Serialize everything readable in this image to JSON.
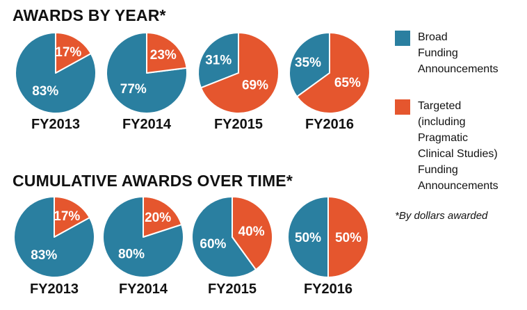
{
  "colors": {
    "broad": "#2a7fa0",
    "targeted": "#e5562e"
  },
  "legend": {
    "broad": [
      "Broad",
      "Funding",
      "Announcements"
    ],
    "targeted": [
      "Targeted",
      "(including",
      "Pragmatic",
      "Clinical Studies)",
      "Funding",
      "Announcements"
    ]
  },
  "note": "*By dollars awarded",
  "chart_data": [
    {
      "type": "pie",
      "title": "AWARDS BY YEAR*",
      "categories": [
        "FY2013",
        "FY2014",
        "FY2015",
        "FY2016"
      ],
      "series": [
        {
          "name": "Broad Funding Announcements",
          "values": [
            83,
            77,
            31,
            35
          ]
        },
        {
          "name": "Targeted (including Pragmatic Clinical Studies) Funding Announcements",
          "values": [
            17,
            23,
            69,
            65
          ]
        }
      ],
      "labels": {
        "broad": [
          "83%",
          "77%",
          "31%",
          "35%"
        ],
        "targeted": [
          "17%",
          "23%",
          "69%",
          "65%"
        ]
      }
    },
    {
      "type": "pie",
      "title": "CUMULATIVE AWARDS OVER TIME*",
      "categories": [
        "FY2013",
        "FY2014",
        "FY2015",
        "FY2016"
      ],
      "series": [
        {
          "name": "Broad Funding Announcements",
          "values": [
            83,
            80,
            60,
            50
          ]
        },
        {
          "name": "Targeted (including Pragmatic Clinical Studies) Funding Announcements",
          "values": [
            17,
            20,
            40,
            50
          ]
        }
      ],
      "labels": {
        "broad": [
          "83%",
          "80%",
          "60%",
          "50%"
        ],
        "targeted": [
          "17%",
          "20%",
          "40%",
          "50%"
        ]
      }
    }
  ]
}
